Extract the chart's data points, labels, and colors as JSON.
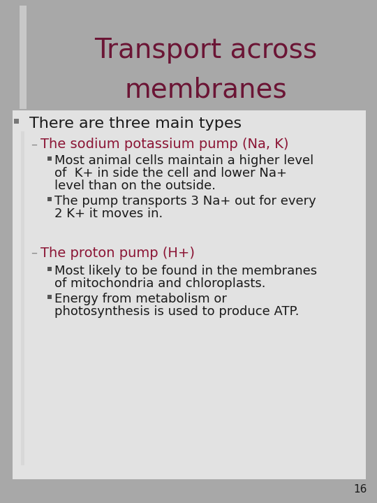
{
  "title_line1": "Transport across",
  "title_line2": "membranes",
  "title_color": "#6b1535",
  "title_fontsize": 28,
  "bg_color": "#a8a8a8",
  "content_bg": "#e2e2e2",
  "bullet1_text": "There are three main types",
  "bullet1_color": "#1a1a1a",
  "bullet1_fontsize": 16,
  "sub1_text": "The sodium potassium pump (Na, K)",
  "sub1_color": "#8b1535",
  "sub1_fontsize": 14,
  "sub1_bullet1_line1": "Most animal cells maintain a higher level",
  "sub1_bullet1_line2": "of  K+ in side the cell and lower Na+",
  "sub1_bullet1_line3": "level than on the outside.",
  "sub1_bullet2_line1": "The pump transports 3 Na+ out for every",
  "sub1_bullet2_line2": "2 K+ it moves in.",
  "sub2_text": "The proton pump (H+)",
  "sub2_color": "#8b1535",
  "sub2_fontsize": 14,
  "sub2_bullet1_line1": "Most likely to be found in the membranes",
  "sub2_bullet1_line2": "of mitochondria and chloroplasts.",
  "sub2_bullet2_line1": "Energy from metabolism or",
  "sub2_bullet2_line2": "photosynthesis is used to produce ATP.",
  "body_text_color": "#1a1a1a",
  "body_fontsize": 13,
  "page_number": "16",
  "page_num_color": "#1a1a1a",
  "page_num_fontsize": 11,
  "dash_color": "#888888",
  "sq_bullet_color": "#555555",
  "main_bullet_color": "#777777",
  "title_bar_color": "#c8c8c8",
  "content_bar_color": "#c8c8c8",
  "content_inner_bar_color": "#d8d8d8"
}
